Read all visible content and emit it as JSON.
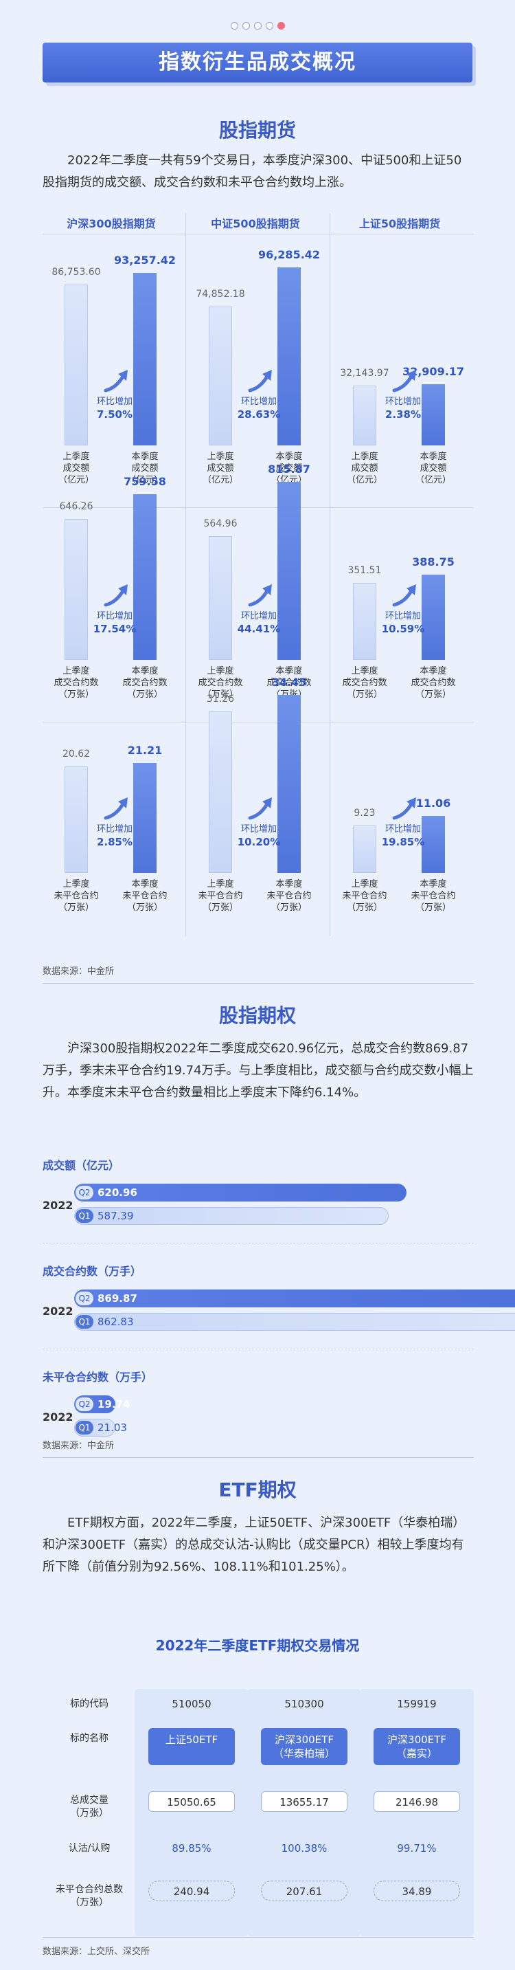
{
  "page_title": "指数衍生品成交概况",
  "futures": {
    "title": "股指期货",
    "intro": "2022年二季度一共有59个交易日，本季度沪深300、中证500和上证50股指期货的成交额、成交合约数和未平仓合约数均上涨。",
    "columns": [
      "沪深300股指期货",
      "中证500股指期货",
      "上证50股指期货"
    ],
    "growth_label": "环比增加",
    "source": "数据来源：中金所"
  },
  "options": {
    "title": "股指期权",
    "intro": "沪深300股指期权2022年二季度成交620.96亿元，总成交合约数869.87万手，季末未平仓合约19.74万手。与上季度相比，成交额与合约成交数小幅上升。本季度末未平仓合约数量相比上季度末下降约6.14%。",
    "year": "2022",
    "q2": "Q2",
    "q1": "Q1",
    "source": "数据来源：中金所"
  },
  "etf": {
    "title": "ETF期权",
    "intro": "ETF期权方面，2022年二季度，上证50ETF、沪深300ETF（华泰柏瑞）和沪深300ETF（嘉实）的总成交认沽-认购比（成交量PCR）相较上季度均有所下降（前值分别为92.56%、108.11%和101.25%）。",
    "table_title": "2022年二季度ETF期权交易情况",
    "row_labels": [
      "标的代码",
      "标的名称",
      "总成交量\n（万张）",
      "认沽/认购",
      "未平仓合约总数\n（万张）"
    ],
    "codes": [
      "510050",
      "510300",
      "159919"
    ],
    "names": [
      "上证50ETF",
      "沪深300ETF\n（华泰柏瑞）",
      "沪深300ETF\n（嘉实）"
    ],
    "volume": [
      "15050.65",
      "13655.17",
      "2146.98"
    ],
    "ratio": [
      "89.85%",
      "100.38%",
      "99.71%"
    ],
    "open_interest": [
      "240.94",
      "207.61",
      "34.89"
    ],
    "source": "数据来源：上交所、深交所"
  },
  "chart_data": [
    {
      "type": "bar",
      "title": "股指期货 成交额",
      "categories": [
        "沪深300股指期货",
        "中证500股指期货",
        "上证50股指期货"
      ],
      "series": [
        {
          "name": "上季度成交额（亿元）",
          "values": [
            86753.6,
            74852.18,
            32143.97
          ],
          "labels": [
            "86,753.60",
            "74,852.18",
            "32,143.97"
          ]
        },
        {
          "name": "本季度成交额（亿元）",
          "values": [
            93257.42,
            96285.42,
            32909.17
          ],
          "labels": [
            "93,257.42",
            "96,285.42",
            "32,909.17"
          ]
        }
      ],
      "growth": [
        "7.50%",
        "28.63%",
        "2.38%"
      ],
      "bar_labels": [
        "上季度\n成交额\n（亿元）",
        "本季度\n成交额\n（亿元）"
      ]
    },
    {
      "type": "bar",
      "title": "股指期货 成交合约数",
      "categories": [
        "沪深300股指期货",
        "中证500股指期货",
        "上证50股指期货"
      ],
      "series": [
        {
          "name": "上季度成交合约数（万张）",
          "values": [
            646.26,
            564.96,
            351.51
          ],
          "labels": [
            "646.26",
            "564.96",
            "351.51"
          ]
        },
        {
          "name": "本季度成交合约数（万张）",
          "values": [
            759.58,
            815.87,
            388.75
          ],
          "labels": [
            "759.58",
            "815.87",
            "388.75"
          ]
        }
      ],
      "growth": [
        "17.54%",
        "44.41%",
        "10.59%"
      ],
      "bar_labels": [
        "上季度\n成交合约数\n（万张）",
        "本季度\n成交合约数\n（万张）"
      ]
    },
    {
      "type": "bar",
      "title": "股指期货 未平仓合约数",
      "categories": [
        "沪深300股指期货",
        "中证500股指期货",
        "上证50股指期货"
      ],
      "series": [
        {
          "name": "上季度未平仓合约（万张）",
          "values": [
            20.62,
            31.26,
            9.23
          ],
          "labels": [
            "20.62",
            "31.26",
            "9.23"
          ]
        },
        {
          "name": "本季度未平仓合约（万张）",
          "values": [
            21.21,
            34.45,
            11.06
          ],
          "labels": [
            "21.21",
            "34.45",
            "11.06"
          ]
        }
      ],
      "growth": [
        "2.85%",
        "10.20%",
        "19.85%"
      ],
      "bar_labels": [
        "上季度\n未平仓合约\n（万张）",
        "本季度\n未平仓合约\n（万张）"
      ]
    },
    {
      "type": "bar",
      "orientation": "horizontal",
      "title": "成交额（亿元）",
      "categories": [
        "Q2",
        "Q1"
      ],
      "values": [
        620.96,
        587.39
      ],
      "labels": [
        "620.96",
        "587.39"
      ]
    },
    {
      "type": "bar",
      "orientation": "horizontal",
      "title": "成交合约数（万手）",
      "categories": [
        "Q2",
        "Q1"
      ],
      "values": [
        869.87,
        862.83
      ],
      "labels": [
        "869.87",
        "862.83"
      ]
    },
    {
      "type": "bar",
      "orientation": "horizontal",
      "title": "未平仓合约数（万手）",
      "categories": [
        "Q2",
        "Q1"
      ],
      "values": [
        19.74,
        21.03
      ],
      "labels": [
        "19.74",
        "21.03"
      ]
    }
  ]
}
